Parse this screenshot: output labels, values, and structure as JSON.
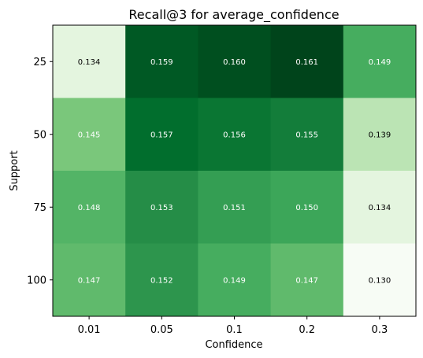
{
  "chart_data": {
    "type": "heatmap",
    "title": "Recall@3 for average_confidence",
    "xlabel": "Confidence",
    "ylabel": "Support",
    "x_categories": [
      "0.01",
      "0.05",
      "0.1",
      "0.2",
      "0.3"
    ],
    "y_categories": [
      "25",
      "50",
      "75",
      "100"
    ],
    "values": [
      [
        0.134,
        0.159,
        0.16,
        0.161,
        0.149
      ],
      [
        0.145,
        0.157,
        0.156,
        0.155,
        0.139
      ],
      [
        0.148,
        0.153,
        0.151,
        0.15,
        0.134
      ],
      [
        0.147,
        0.152,
        0.149,
        0.147,
        0.13
      ]
    ],
    "value_format": 3,
    "colormap": "Greens",
    "colormap_stops": [
      "#f7fcf5",
      "#e5f5e0",
      "#c7e9c0",
      "#a1d99b",
      "#74c476",
      "#41ab5d",
      "#238b45",
      "#006d2c",
      "#00441b"
    ],
    "label_colors": {
      "light_bg": "#000000",
      "dark_bg": "#ffffff"
    },
    "grid": false,
    "legend": "none"
  }
}
